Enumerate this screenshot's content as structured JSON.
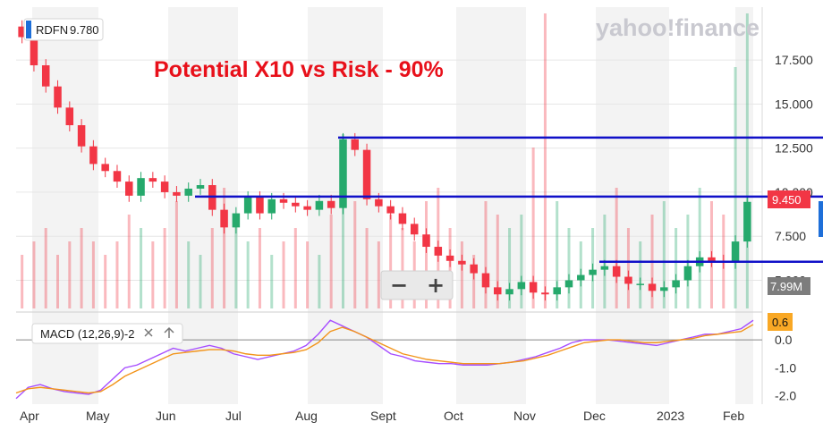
{
  "brand": "yahoo!finance",
  "ticker_badge": {
    "symbol": "RDFN",
    "value": "9.780"
  },
  "annotation": "Potential X10 vs Risk - 90%",
  "price_badge": "9.450",
  "volume_badge": "7.99M",
  "macd_badge": "0.6",
  "macd_label": "MACD (12,26,9)-2",
  "zoom": {
    "minus": "−",
    "plus": "+"
  },
  "colors": {
    "up": "#26a96c",
    "down": "#f23645",
    "level_line": "#1010c8",
    "macd": "#a64dff",
    "signal": "#f2941a",
    "badge_price": "#f23645",
    "badge_macd": "#f9a825"
  },
  "chart_data": [
    {
      "type": "candlestick",
      "x_ticks": [
        "Apr",
        "May",
        "Jun",
        "Jul",
        "Aug",
        "Sept",
        "Oct",
        "Nov",
        "Dec",
        "2023",
        "Feb"
      ],
      "y_ticks": [
        "17.500",
        "15.000",
        "12.500",
        "10.000",
        "7.500",
        "5.000"
      ],
      "y_ticks_values": [
        17.5,
        15,
        12.5,
        10,
        7.5,
        5
      ],
      "ylim": [
        3.4,
        20.5
      ],
      "close_series_approx": [
        18.8,
        17.2,
        16.0,
        14.8,
        13.8,
        12.6,
        11.6,
        11.2,
        10.6,
        9.8,
        10.8,
        10.6,
        10.0,
        9.8,
        10.2,
        10.4,
        9.0,
        8.0,
        8.8,
        9.7,
        8.8,
        9.6,
        9.4,
        9.2,
        9.0,
        9.5,
        9.1,
        13.0,
        12.4,
        9.6,
        9.2,
        8.8,
        8.2,
        7.6,
        6.9,
        6.4,
        6.1,
        5.9,
        5.4,
        4.6,
        4.2,
        4.5,
        4.9,
        4.3,
        4.2,
        4.6,
        5.0,
        5.3,
        5.6,
        5.8,
        5.2,
        4.8,
        4.8,
        4.4,
        4.6,
        5.0,
        5.8,
        6.3,
        6.1,
        6.0,
        7.2,
        9.45
      ],
      "horizontal_levels": [
        13.1,
        9.75,
        6.05
      ],
      "volume_series_approx": [
        4,
        5,
        6,
        4,
        5,
        6,
        5,
        4,
        5,
        7,
        6,
        5,
        6,
        8,
        5,
        4,
        6,
        9,
        7,
        5,
        6,
        4,
        5,
        6,
        5,
        4,
        7,
        13,
        8,
        6,
        5,
        7,
        6,
        5,
        8,
        9,
        6,
        5,
        4,
        8,
        7,
        6,
        7,
        12,
        22,
        8,
        6,
        5,
        6,
        7,
        9,
        6,
        5,
        7,
        8,
        6,
        7,
        9,
        8,
        7,
        18,
        22
      ]
    },
    {
      "type": "line",
      "title": "MACD (12,26,9)-2",
      "y_ticks": [
        "0.0",
        "-1.0",
        "-2.0"
      ],
      "y_ticks_values": [
        0,
        -1,
        -2
      ],
      "ylim": [
        -2.3,
        0.9
      ],
      "series": [
        {
          "values": [
            -2.1,
            -1.7,
            -1.6,
            -1.75,
            -1.85,
            -1.9,
            -1.95,
            -1.8,
            -1.4,
            -1.0,
            -0.9,
            -0.7,
            -0.5,
            -0.3,
            -0.4,
            -0.3,
            -0.2,
            -0.3,
            -0.5,
            -0.6,
            -0.7,
            -0.6,
            -0.5,
            -0.4,
            -0.2,
            0.2,
            0.7,
            0.5,
            0.3,
            0.1,
            -0.2,
            -0.5,
            -0.6,
            -0.75,
            -0.8,
            -0.85,
            -0.85,
            -0.9,
            -0.9,
            -0.9,
            -0.85,
            -0.8,
            -0.7,
            -0.6,
            -0.45,
            -0.3,
            -0.1,
            0.0,
            0.0,
            0.0,
            -0.05,
            -0.1,
            -0.15,
            -0.2,
            -0.1,
            0.0,
            0.1,
            0.2,
            0.2,
            0.3,
            0.4,
            0.7
          ]
        },
        {
          "values": [
            -1.9,
            -1.75,
            -1.7,
            -1.75,
            -1.8,
            -1.85,
            -1.9,
            -1.85,
            -1.6,
            -1.3,
            -1.1,
            -0.9,
            -0.7,
            -0.5,
            -0.45,
            -0.4,
            -0.35,
            -0.35,
            -0.4,
            -0.5,
            -0.55,
            -0.55,
            -0.5,
            -0.45,
            -0.35,
            -0.1,
            0.3,
            0.45,
            0.3,
            0.1,
            -0.1,
            -0.3,
            -0.5,
            -0.6,
            -0.7,
            -0.75,
            -0.8,
            -0.85,
            -0.85,
            -0.85,
            -0.85,
            -0.8,
            -0.75,
            -0.65,
            -0.55,
            -0.4,
            -0.25,
            -0.1,
            -0.05,
            0.0,
            0.0,
            -0.05,
            -0.1,
            -0.1,
            -0.05,
            0.0,
            0.05,
            0.15,
            0.2,
            0.25,
            0.3,
            0.55
          ]
        }
      ]
    }
  ]
}
